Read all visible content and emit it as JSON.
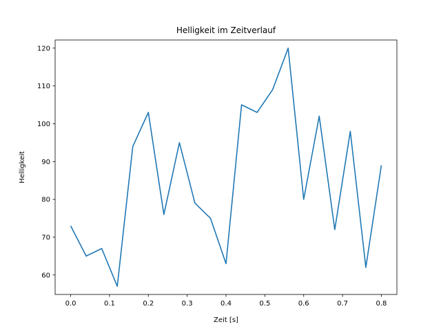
{
  "chart_data": {
    "type": "line",
    "title": "Helligkeit im Zeitverlauf",
    "xlabel": "Zeit [s]",
    "ylabel": "Helligkeit",
    "xlim": [
      -0.04,
      0.84
    ],
    "ylim": [
      54.85,
      122.15
    ],
    "xticks": [
      0.0,
      0.1,
      0.2,
      0.3,
      0.4,
      0.5,
      0.6,
      0.7,
      0.8
    ],
    "xtick_labels": [
      "0.0",
      "0.1",
      "0.2",
      "0.3",
      "0.4",
      "0.5",
      "0.6",
      "0.7",
      "0.8"
    ],
    "yticks": [
      60,
      70,
      80,
      90,
      100,
      110,
      120
    ],
    "ytick_labels": [
      "60",
      "70",
      "80",
      "90",
      "100",
      "110",
      "120"
    ],
    "grid": false,
    "series": [
      {
        "color": "#1f77b4",
        "x": [
          0.0,
          0.04,
          0.08,
          0.12,
          0.16,
          0.2,
          0.24,
          0.28,
          0.32,
          0.36,
          0.4,
          0.44,
          0.48,
          0.52,
          0.56,
          0.6,
          0.64,
          0.68,
          0.72,
          0.76,
          0.8
        ],
        "y": [
          73,
          65,
          67,
          57,
          94,
          103,
          76,
          95,
          79,
          75,
          63,
          105,
          103,
          109,
          120,
          80,
          102,
          72,
          98,
          62,
          89
        ]
      }
    ]
  }
}
